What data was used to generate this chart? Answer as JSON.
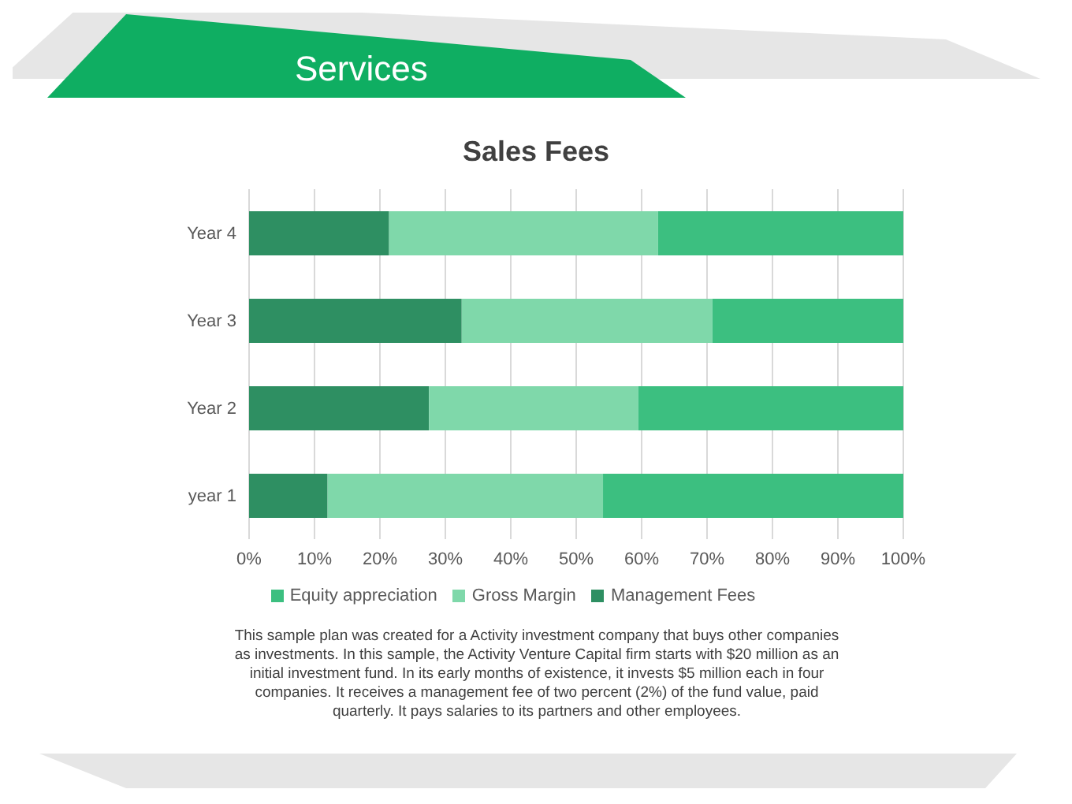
{
  "chart_data": {
    "type": "bar",
    "orientation": "horizontal",
    "stacked": true,
    "title": "Sales Fees",
    "categories": [
      "Year 4",
      "Year 3",
      "Year 2",
      "year 1"
    ],
    "series": [
      {
        "name": "Management Fees",
        "color": "#2e8f62",
        "values": [
          21.4,
          32.5,
          27.5,
          12
        ]
      },
      {
        "name": "Gross Margin",
        "color": "#7fd8aa",
        "values": [
          41.1,
          38.3,
          32,
          42.1
        ]
      },
      {
        "name": "Equity appreciation",
        "color": "#3cbf80",
        "values": [
          37.5,
          29.2,
          40.5,
          45.9
        ]
      }
    ],
    "xlim": [
      0,
      100
    ],
    "xticks": [
      {
        "value": 0,
        "label": "0%"
      },
      {
        "value": 10,
        "label": "10%"
      },
      {
        "value": 20,
        "label": "20%"
      },
      {
        "value": 30,
        "label": "30%"
      },
      {
        "value": 40,
        "label": "40%"
      },
      {
        "value": 50,
        "label": "50%"
      },
      {
        "value": 60,
        "label": "60%"
      },
      {
        "value": 70,
        "label": "70%"
      },
      {
        "value": 80,
        "label": "80%"
      },
      {
        "value": 90,
        "label": "90%"
      },
      {
        "value": 100,
        "label": "100%"
      }
    ],
    "grid": "x",
    "legend": "bottom",
    "annotations": [
      "Services",
      "This sample plan was created for a Activity investment company that buys other companies as investments. In this sample, the Activity Venture Capital firm starts with $20 million as an initial investment fund. In its early months of existence, it invests $5 million each in four companies. It receives a management fee of two percent (2%) of the fund value, paid quarterly. It pays salaries to its partners and other employees."
    ]
  }
}
